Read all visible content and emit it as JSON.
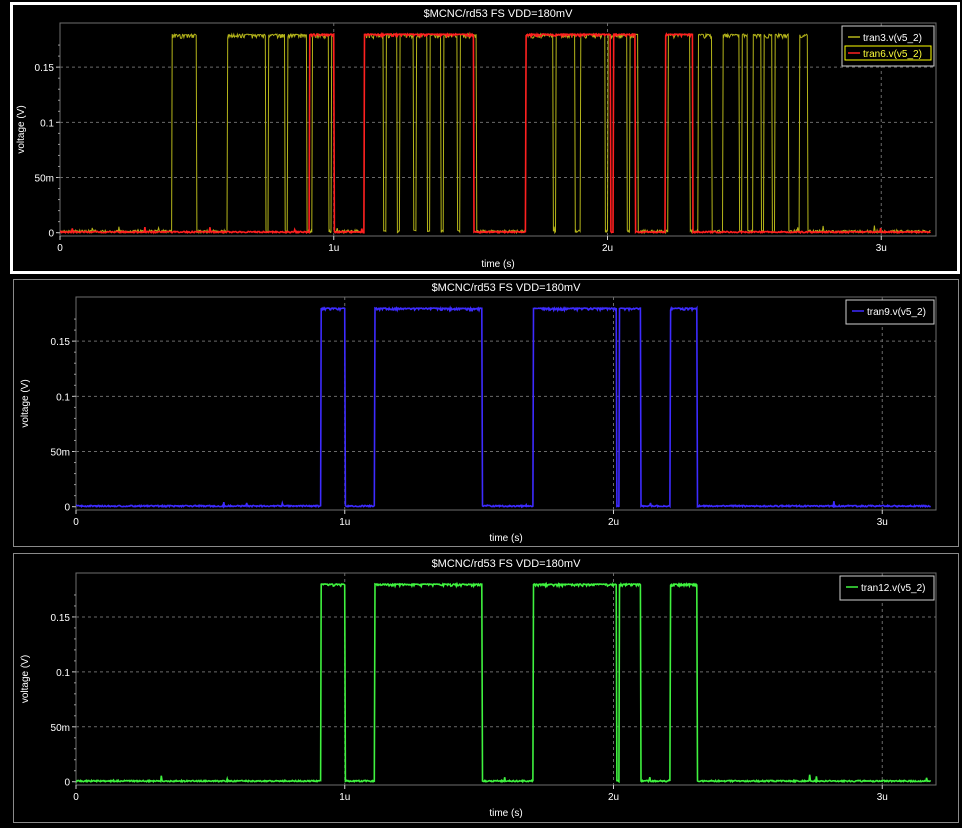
{
  "window": {
    "background": "#000000"
  },
  "chart_data": [
    {
      "type": "line",
      "title": "$MCNC/rd53 FS VDD=180mV",
      "xlabel": "time (s)",
      "ylabel": "voltage (V)",
      "xlim": [
        0,
        3.2
      ],
      "ylim": [
        -0.003,
        0.19
      ],
      "x_ticks": [
        {
          "v": 0,
          "label": "0"
        },
        {
          "v": 1,
          "label": "1u"
        },
        {
          "v": 2,
          "label": "2u"
        },
        {
          "v": 3,
          "label": "3u"
        }
      ],
      "y_ticks": [
        {
          "v": 0,
          "label": "0"
        },
        {
          "v": 0.05,
          "label": "50m"
        },
        {
          "v": 0.1,
          "label": "0.1"
        },
        {
          "v": 0.15,
          "label": "0.15"
        }
      ],
      "grid": true,
      "legend_position": "top-right",
      "x_unit": "us",
      "series": [
        {
          "name": "tran3.v(v5_2)",
          "color": "#b5b51a",
          "high": 0.18,
          "noise": 0.004,
          "pulses": [
            [
              0.41,
              0.48
            ],
            [
              0.48,
              0.5
            ],
            [
              0.61,
              0.68
            ],
            [
              0.68,
              0.75
            ],
            [
              0.76,
              0.82
            ],
            [
              0.83,
              0.9
            ],
            [
              0.92,
              0.98
            ],
            [
              0.99,
              1.0
            ],
            [
              1.11,
              1.18
            ],
            [
              1.19,
              1.23
            ],
            [
              1.24,
              1.29
            ],
            [
              1.3,
              1.34
            ],
            [
              1.35,
              1.39
            ],
            [
              1.4,
              1.45
            ],
            [
              1.46,
              1.52
            ],
            [
              1.7,
              1.8
            ],
            [
              1.81,
              1.88
            ],
            [
              1.9,
              1.99
            ],
            [
              2.0,
              2.07
            ],
            [
              2.08,
              2.11
            ],
            [
              2.22,
              2.3
            ],
            [
              2.33,
              2.38
            ],
            [
              2.42,
              2.48
            ],
            [
              2.49,
              2.51
            ],
            [
              2.53,
              2.56
            ],
            [
              2.57,
              2.6
            ],
            [
              2.61,
              2.66
            ],
            [
              2.7,
              2.73
            ]
          ],
          "draw_order": 1
        },
        {
          "name": "tran6.v(v5_2)",
          "color": "#ff2020",
          "high": 0.18,
          "noise": 0.002,
          "pulses": [
            [
              0.91,
              1.0
            ],
            [
              1.11,
              1.51
            ],
            [
              1.7,
              2.01
            ],
            [
              2.02,
              2.1
            ],
            [
              2.21,
              2.31
            ]
          ],
          "draw_order": 2
        }
      ]
    },
    {
      "type": "line",
      "title": "$MCNC/rd53 FS VDD=180mV",
      "xlabel": "time (s)",
      "ylabel": "voltage (V)",
      "xlim": [
        0,
        3.2
      ],
      "ylim": [
        -0.003,
        0.19
      ],
      "x_ticks": [
        {
          "v": 0,
          "label": "0"
        },
        {
          "v": 1,
          "label": "1u"
        },
        {
          "v": 2,
          "label": "2u"
        },
        {
          "v": 3,
          "label": "3u"
        }
      ],
      "y_ticks": [
        {
          "v": 0,
          "label": "0"
        },
        {
          "v": 0.05,
          "label": "50m"
        },
        {
          "v": 0.1,
          "label": "0.1"
        },
        {
          "v": 0.15,
          "label": "0.15"
        }
      ],
      "grid": true,
      "legend_position": "top-right",
      "x_unit": "us",
      "series": [
        {
          "name": "tran9.v(v5_2)",
          "color": "#3d2bff",
          "high": 0.18,
          "noise": 0.002,
          "pulses": [
            [
              0.91,
              1.0
            ],
            [
              1.11,
              1.51
            ],
            [
              1.7,
              2.01
            ],
            [
              2.02,
              2.1
            ],
            [
              2.21,
              2.31
            ]
          ],
          "draw_order": 1
        }
      ]
    },
    {
      "type": "line",
      "title": "$MCNC/rd53 FS VDD=180mV",
      "xlabel": "time (s)",
      "ylabel": "voltage (V)",
      "xlim": [
        0,
        3.2
      ],
      "ylim": [
        -0.003,
        0.19
      ],
      "x_ticks": [
        {
          "v": 0,
          "label": "0"
        },
        {
          "v": 1,
          "label": "1u"
        },
        {
          "v": 2,
          "label": "2u"
        },
        {
          "v": 3,
          "label": "3u"
        }
      ],
      "y_ticks": [
        {
          "v": 0,
          "label": "0"
        },
        {
          "v": 0.05,
          "label": "50m"
        },
        {
          "v": 0.1,
          "label": "0.1"
        },
        {
          "v": 0.15,
          "label": "0.15"
        }
      ],
      "grid": true,
      "legend_position": "top-right",
      "x_unit": "us",
      "series": [
        {
          "name": "tran12.v(v5_2)",
          "color": "#3ff23f",
          "high": 0.18,
          "noise": 0.002,
          "pulses": [
            [
              0.91,
              1.0
            ],
            [
              1.11,
              1.51
            ],
            [
              1.7,
              2.01
            ],
            [
              2.02,
              2.1
            ],
            [
              2.21,
              2.31
            ]
          ],
          "draw_order": 1
        }
      ]
    }
  ]
}
